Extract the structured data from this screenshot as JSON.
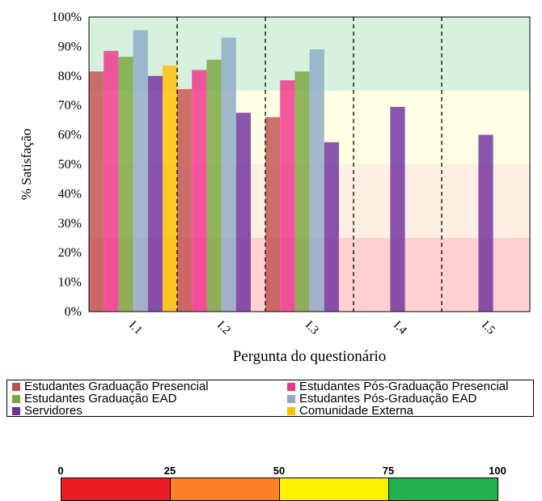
{
  "chart_data": {
    "type": "bar",
    "title": "",
    "xlabel": "Pergunta do questionário",
    "ylabel": "% Satisfação",
    "ylim": [
      0,
      100
    ],
    "yticks": [
      "0%",
      "10%",
      "20%",
      "30%",
      "40%",
      "50%",
      "60%",
      "70%",
      "80%",
      "90%",
      "100%"
    ],
    "categories": [
      "I.1",
      "I.2",
      "I.3",
      "I.4",
      "I.5"
    ],
    "series": [
      {
        "name": "Estudantes Graduação Presencial",
        "color": "#C0504D",
        "values": [
          81.5,
          75.5,
          66,
          null,
          null
        ]
      },
      {
        "name": "Estudantes Pós-Graduação Presencial",
        "color": "#F0328C",
        "values": [
          88.5,
          82,
          78.5,
          null,
          null
        ]
      },
      {
        "name": "Estudantes Graduação EAD",
        "color": "#77A53E",
        "values": [
          86.5,
          85.5,
          81.5,
          null,
          null
        ]
      },
      {
        "name": "Estudantes Pós-Graduação EAD",
        "color": "#8EA9C7",
        "values": [
          95.5,
          93,
          89,
          null,
          null
        ]
      },
      {
        "name": "Servidores",
        "color": "#7030A0",
        "values": [
          80,
          67.5,
          57.5,
          69.5,
          60
        ]
      },
      {
        "name": "Comunidade Externa",
        "color": "#FFC000",
        "values": [
          83.5,
          null,
          null,
          null,
          null
        ]
      }
    ],
    "background_bands": [
      {
        "from": 0,
        "to": 25,
        "color": "#FF0000"
      },
      {
        "from": 25,
        "to": 50,
        "color": "#F4A460"
      },
      {
        "from": 50,
        "to": 75,
        "color": "#FFFF66"
      },
      {
        "from": 75,
        "to": 100,
        "color": "#22B14C"
      }
    ],
    "legend_position": "bottom",
    "grid": false
  },
  "scale": {
    "labels": [
      "0",
      "25",
      "50",
      "75",
      "100"
    ],
    "colors": [
      "#ED1C24",
      "#FF7F27",
      "#FFF200",
      "#22B14C"
    ]
  }
}
